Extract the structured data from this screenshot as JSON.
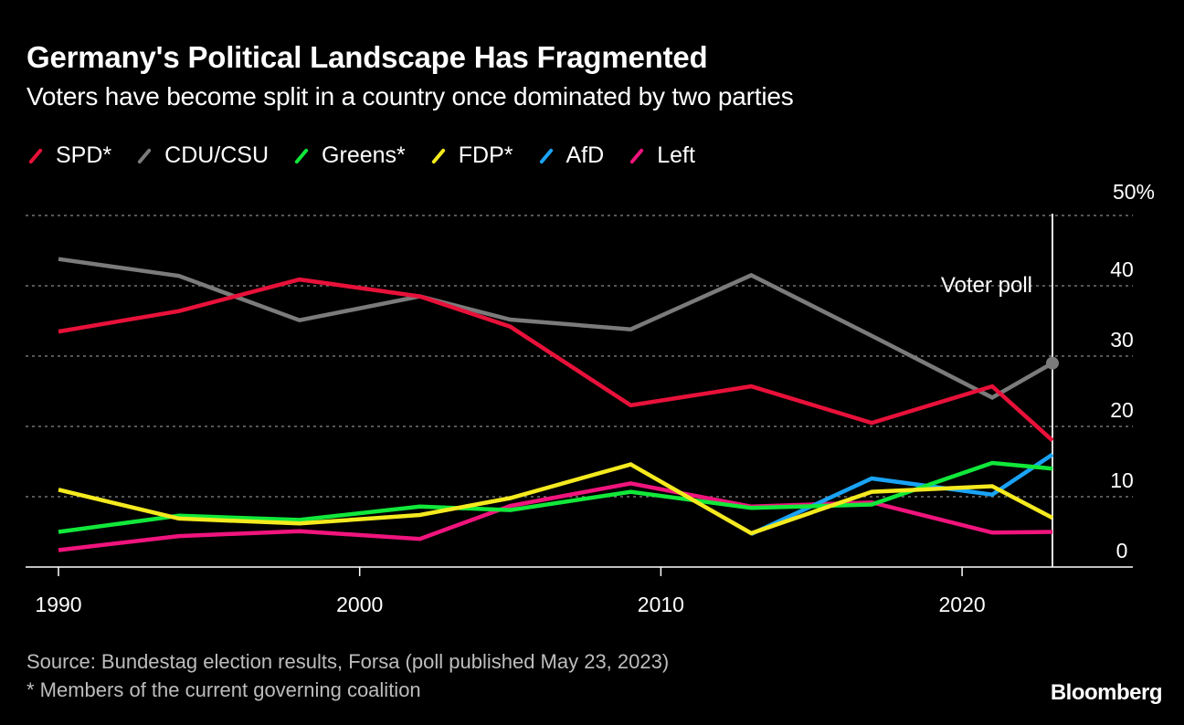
{
  "header": {
    "title": "Germany's Political Landscape Has Fragmented",
    "subtitle": "Voters have become split in a country once dominated by two parties"
  },
  "footer": {
    "source": "Source: Bundestag election results, Forsa (poll published May 23, 2023)",
    "note": "* Members of the current governing coalition",
    "brand": "Bloomberg"
  },
  "chart_data": {
    "type": "line",
    "title": "Germany's Political Landscape Has Fragmented",
    "subtitle": "Voters have become split in a country once dominated by two parties",
    "xlabel": "",
    "ylabel": "",
    "x": [
      1990,
      1994,
      1998,
      2002,
      2005,
      2009,
      2013,
      2017,
      2021,
      2023
    ],
    "xlim": [
      1990,
      2025
    ],
    "ylim": [
      0,
      50
    ],
    "x_ticks": [
      1990,
      2000,
      2010,
      2020
    ],
    "y_ticks": [
      0,
      10,
      20,
      30,
      40,
      50
    ],
    "y_tick_labels": [
      "0",
      "10",
      "20",
      "30",
      "40",
      "50%"
    ],
    "y_axis_side": "right",
    "grid": true,
    "legend_position": "top-left",
    "annotation": {
      "text": "Voter poll",
      "x": 2023
    },
    "series": [
      {
        "name": "SPD*",
        "color": "#e8113a",
        "values": [
          33.5,
          36.4,
          40.9,
          38.5,
          34.2,
          23.0,
          25.7,
          20.5,
          25.7,
          18
        ]
      },
      {
        "name": "CDU/CSU",
        "color": "#7b7b7b",
        "values": [
          43.8,
          41.4,
          35.1,
          38.5,
          35.2,
          33.8,
          41.5,
          32.9,
          24.1,
          29
        ]
      },
      {
        "name": "Greens*",
        "color": "#11e83a",
        "values": [
          5.0,
          7.3,
          6.7,
          8.6,
          8.1,
          10.7,
          8.4,
          8.9,
          14.8,
          14
        ]
      },
      {
        "name": "FDP*",
        "color": "#f5ea1f",
        "values": [
          11.0,
          6.9,
          6.2,
          7.4,
          9.8,
          14.6,
          4.8,
          10.7,
          11.5,
          7
        ]
      },
      {
        "name": "AfD",
        "color": "#1aa3f5",
        "x": [
          2013,
          2017,
          2021,
          2023
        ],
        "values": [
          4.7,
          12.6,
          10.3,
          16
        ]
      },
      {
        "name": "Left",
        "color": "#f0147d",
        "values": [
          2.4,
          4.4,
          5.1,
          4.0,
          8.7,
          11.9,
          8.6,
          9.2,
          4.9,
          5
        ]
      }
    ]
  }
}
